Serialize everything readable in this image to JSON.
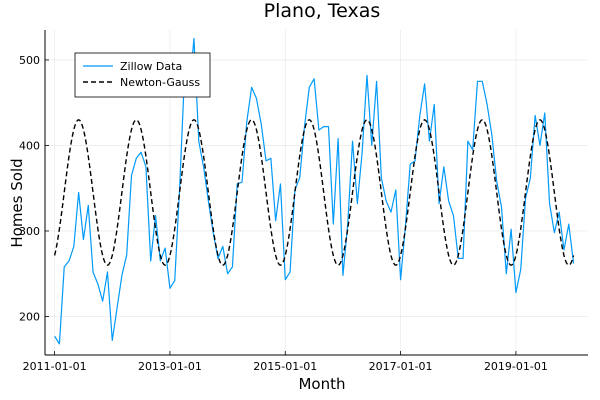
{
  "chart_data": {
    "type": "line",
    "title": "Plano, Texas",
    "xlabel": "Month",
    "ylabel": "Homes Sold",
    "x_axis": {
      "kind": "date",
      "range": [
        "2010-11-01",
        "2020-04-01"
      ],
      "ticks": [
        "2011-01-01",
        "2013-01-01",
        "2015-01-01",
        "2017-01-01",
        "2019-01-01"
      ]
    },
    "y_axis": {
      "range": [
        155,
        535
      ],
      "ticks": [
        200,
        300,
        400,
        500
      ]
    },
    "grid": true,
    "legend": {
      "placement": "top-left"
    },
    "series": [
      {
        "name": "Zillow Data",
        "color": "#009AFA",
        "style": "solid",
        "points": [
          [
            "2011-01-01",
            177
          ],
          [
            "2011-02-01",
            168
          ],
          [
            "2011-03-01",
            258
          ],
          [
            "2011-04-01",
            265
          ],
          [
            "2011-05-01",
            282
          ],
          [
            "2011-06-01",
            345
          ],
          [
            "2011-07-01",
            290
          ],
          [
            "2011-08-01",
            330
          ],
          [
            "2011-09-01",
            252
          ],
          [
            "2011-10-01",
            238
          ],
          [
            "2011-11-01",
            218
          ],
          [
            "2011-12-01",
            252
          ],
          [
            "2012-01-01",
            172
          ],
          [
            "2012-02-01",
            210
          ],
          [
            "2012-03-01",
            248
          ],
          [
            "2012-04-01",
            272
          ],
          [
            "2012-05-01",
            365
          ],
          [
            "2012-06-01",
            385
          ],
          [
            "2012-07-01",
            392
          ],
          [
            "2012-08-01",
            375
          ],
          [
            "2012-09-01",
            265
          ],
          [
            "2012-10-01",
            318
          ],
          [
            "2012-11-01",
            265
          ],
          [
            "2012-12-01",
            280
          ],
          [
            "2013-01-01",
            233
          ],
          [
            "2013-02-01",
            242
          ],
          [
            "2013-03-01",
            348
          ],
          [
            "2013-04-01",
            478
          ],
          [
            "2013-05-01",
            462
          ],
          [
            "2013-06-01",
            525
          ],
          [
            "2013-07-01",
            405
          ],
          [
            "2013-08-01",
            375
          ],
          [
            "2013-09-01",
            335
          ],
          [
            "2013-10-01",
            298
          ],
          [
            "2013-11-01",
            268
          ],
          [
            "2013-12-01",
            282
          ],
          [
            "2014-01-01",
            250
          ],
          [
            "2014-02-01",
            258
          ],
          [
            "2014-03-01",
            355
          ],
          [
            "2014-04-01",
            357
          ],
          [
            "2014-05-01",
            428
          ],
          [
            "2014-06-01",
            468
          ],
          [
            "2014-07-01",
            455
          ],
          [
            "2014-08-01",
            425
          ],
          [
            "2014-09-01",
            382
          ],
          [
            "2014-10-01",
            385
          ],
          [
            "2014-11-01",
            312
          ],
          [
            "2014-12-01",
            355
          ],
          [
            "2015-01-01",
            243
          ],
          [
            "2015-02-01",
            252
          ],
          [
            "2015-03-01",
            348
          ],
          [
            "2015-04-01",
            362
          ],
          [
            "2015-05-01",
            422
          ],
          [
            "2015-06-01",
            468
          ],
          [
            "2015-07-01",
            478
          ],
          [
            "2015-08-01",
            418
          ],
          [
            "2015-09-01",
            422
          ],
          [
            "2015-10-01",
            422
          ],
          [
            "2015-11-01",
            308
          ],
          [
            "2015-12-01",
            408
          ],
          [
            "2016-01-01",
            248
          ],
          [
            "2016-02-01",
            308
          ],
          [
            "2016-03-01",
            405
          ],
          [
            "2016-04-01",
            332
          ],
          [
            "2016-05-01",
            392
          ],
          [
            "2016-06-01",
            482
          ],
          [
            "2016-07-01",
            400
          ],
          [
            "2016-08-01",
            475
          ],
          [
            "2016-09-01",
            362
          ],
          [
            "2016-10-01",
            335
          ],
          [
            "2016-11-01",
            322
          ],
          [
            "2016-12-01",
            348
          ],
          [
            "2017-01-01",
            243
          ],
          [
            "2017-02-01",
            305
          ],
          [
            "2017-03-01",
            378
          ],
          [
            "2017-04-01",
            382
          ],
          [
            "2017-05-01",
            435
          ],
          [
            "2017-06-01",
            472
          ],
          [
            "2017-07-01",
            405
          ],
          [
            "2017-08-01",
            448
          ],
          [
            "2017-09-01",
            332
          ],
          [
            "2017-10-01",
            375
          ],
          [
            "2017-11-01",
            335
          ],
          [
            "2017-12-01",
            318
          ],
          [
            "2018-01-01",
            268
          ],
          [
            "2018-02-01",
            268
          ],
          [
            "2018-03-01",
            405
          ],
          [
            "2018-04-01",
            395
          ],
          [
            "2018-05-01",
            475
          ],
          [
            "2018-06-01",
            475
          ],
          [
            "2018-07-01",
            448
          ],
          [
            "2018-08-01",
            412
          ],
          [
            "2018-09-01",
            358
          ],
          [
            "2018-10-01",
            328
          ],
          [
            "2018-11-01",
            250
          ],
          [
            "2018-12-01",
            302
          ],
          [
            "2019-01-01",
            228
          ],
          [
            "2019-02-01",
            255
          ],
          [
            "2019-03-01",
            338
          ],
          [
            "2019-04-01",
            362
          ],
          [
            "2019-05-01",
            435
          ],
          [
            "2019-06-01",
            400
          ],
          [
            "2019-07-01",
            438
          ],
          [
            "2019-08-01",
            332
          ],
          [
            "2019-09-01",
            298
          ],
          [
            "2019-10-01",
            322
          ],
          [
            "2019-11-01",
            278
          ],
          [
            "2019-12-01",
            308
          ],
          [
            "2020-01-01",
            262
          ]
        ]
      },
      {
        "name": "Newton-Gauss",
        "color": "#000000",
        "style": "dashed",
        "model": {
          "type": "sinusoid",
          "mean": 345,
          "amplitude": 85,
          "period_months": 12,
          "peak_month": 6
        },
        "x_start": "2011-01-01",
        "x_end": "2020-01-01"
      }
    ]
  }
}
